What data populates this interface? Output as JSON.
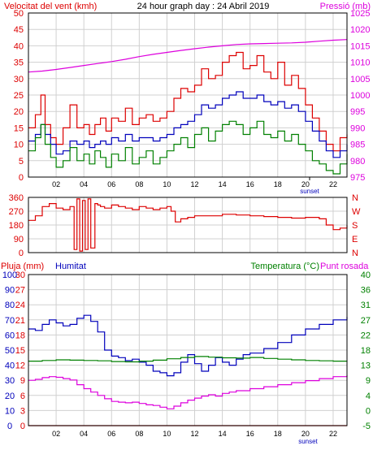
{
  "colors": {
    "red": "#dd0000",
    "blue": "#0000bb",
    "green": "#008000",
    "magenta": "#dd00dd",
    "grid": "#d0d0d0",
    "frame": "#000000"
  },
  "chart_data": [
    {
      "id": "wind-pressure",
      "type": "line",
      "title": "24 hour graph day : 24 Abril 2019",
      "left_label": "Velocitat del vent (kmh)",
      "right_label": "Pressió (mb)",
      "x_ticks": [
        "02",
        "04",
        "06",
        "08",
        "10",
        "12",
        "14",
        "16",
        "18",
        "20",
        "22"
      ],
      "sunset_label": "sunset",
      "y_left": {
        "range": [
          0,
          50
        ],
        "ticks": [
          0,
          5,
          10,
          15,
          20,
          25,
          30,
          35,
          40,
          45,
          50
        ]
      },
      "y_right": {
        "range": [
          975,
          1025
        ],
        "ticks": [
          975,
          980,
          985,
          990,
          995,
          1000,
          1005,
          1010,
          1015,
          1020,
          1025
        ]
      },
      "series": [
        {
          "color": "red",
          "axis": "left",
          "x": [
            0.0,
            0.5,
            0.9,
            1.2,
            1.6,
            2.0,
            2.5,
            3.0,
            3.5,
            4.0,
            4.4,
            4.8,
            5.2,
            5.6,
            6.0,
            6.5,
            7.0,
            7.5,
            8.0,
            8.5,
            9.0,
            9.5,
            10.0,
            10.5,
            11.0,
            11.5,
            12.0,
            12.5,
            13.0,
            13.5,
            14.0,
            14.5,
            15.0,
            15.5,
            16.0,
            16.5,
            17.0,
            17.5,
            18.0,
            18.5,
            19.0,
            19.5,
            20.0,
            20.5,
            21.0,
            21.5,
            22.0,
            22.5,
            23.0
          ],
          "values": [
            15,
            19,
            25,
            16,
            12,
            10,
            15,
            22,
            15,
            16,
            13,
            16,
            18,
            14,
            18,
            17,
            21,
            16,
            18,
            19,
            17,
            18,
            20,
            24,
            27,
            26,
            28,
            33,
            30,
            31,
            35,
            37,
            38,
            33,
            34,
            37,
            32,
            30,
            35,
            28,
            31,
            27,
            22,
            18,
            14,
            10,
            8,
            12,
            13
          ]
        },
        {
          "color": "blue",
          "axis": "left",
          "x": [
            0.0,
            0.5,
            0.9,
            1.2,
            1.6,
            2.0,
            2.5,
            3.0,
            3.5,
            4.0,
            4.4,
            4.8,
            5.2,
            5.6,
            6.0,
            6.5,
            7.0,
            7.5,
            8.0,
            8.5,
            9.0,
            9.5,
            10.0,
            10.5,
            11.0,
            11.5,
            12.0,
            12.5,
            13.0,
            13.5,
            14.0,
            14.5,
            15.0,
            15.5,
            16.0,
            16.5,
            17.0,
            17.5,
            18.0,
            18.5,
            19.0,
            19.5,
            20.0,
            20.5,
            21.0,
            21.5,
            22.0,
            22.5,
            23.0
          ],
          "values": [
            11,
            13,
            16,
            13,
            10,
            7,
            8,
            11,
            10,
            11,
            9,
            10,
            11,
            10,
            12,
            11,
            13,
            11,
            12,
            12,
            11,
            12,
            13,
            15,
            16,
            17,
            19,
            22,
            21,
            22,
            24,
            25,
            26,
            24,
            24,
            25,
            23,
            22,
            23,
            21,
            22,
            20,
            17,
            14,
            11,
            8,
            6,
            8,
            10
          ]
        },
        {
          "color": "green",
          "axis": "left",
          "x": [
            0.0,
            0.5,
            0.9,
            1.2,
            1.6,
            2.0,
            2.5,
            3.0,
            3.5,
            4.0,
            4.4,
            4.8,
            5.2,
            5.6,
            6.0,
            6.5,
            7.0,
            7.5,
            8.0,
            8.5,
            9.0,
            9.5,
            10.0,
            10.5,
            11.0,
            11.5,
            12.0,
            12.5,
            13.0,
            13.5,
            14.0,
            14.5,
            15.0,
            15.5,
            16.0,
            16.5,
            17.0,
            17.5,
            18.0,
            18.5,
            19.0,
            19.5,
            20.0,
            20.5,
            21.0,
            21.5,
            22.0,
            22.5,
            23.0
          ],
          "values": [
            8,
            12,
            16,
            10,
            6,
            3,
            5,
            9,
            5,
            7,
            4,
            8,
            6,
            3,
            7,
            5,
            9,
            4,
            6,
            8,
            4,
            6,
            8,
            10,
            12,
            9,
            13,
            15,
            11,
            14,
            16,
            17,
            16,
            13,
            15,
            17,
            13,
            12,
            14,
            11,
            13,
            10,
            8,
            5,
            4,
            2,
            1,
            4,
            7
          ]
        },
        {
          "color": "magenta",
          "axis": "right",
          "x": [
            0,
            1,
            2,
            3,
            4,
            5,
            6,
            7,
            8,
            9,
            10,
            11,
            12,
            13,
            14,
            15,
            16,
            17,
            18,
            19,
            20,
            21,
            22,
            23
          ],
          "values": [
            1007.0,
            1007.3,
            1007.8,
            1008.4,
            1009.0,
            1009.6,
            1010.2,
            1010.9,
            1011.7,
            1012.4,
            1013.0,
            1013.6,
            1014.1,
            1014.6,
            1015.0,
            1015.4,
            1015.6,
            1015.7,
            1015.8,
            1015.9,
            1016.1,
            1016.4,
            1016.7,
            1016.9
          ]
        }
      ]
    },
    {
      "id": "wind-direction",
      "type": "line",
      "y_ticks": [
        0,
        90,
        180,
        270,
        360
      ],
      "y_range": [
        0,
        360
      ],
      "direction_labels": [
        "N",
        "W",
        "S",
        "E",
        "N"
      ],
      "x_ticks": [
        "02",
        "04",
        "06",
        "08",
        "10",
        "12",
        "14",
        "16",
        "18",
        "20",
        "22"
      ],
      "series": [
        {
          "color": "red",
          "x": [
            0.0,
            0.5,
            1.0,
            1.5,
            2.0,
            2.5,
            3.0,
            3.3,
            3.5,
            3.7,
            3.9,
            4.1,
            4.3,
            4.5,
            4.8,
            5.0,
            5.2,
            5.5,
            6.0,
            6.5,
            7.0,
            7.5,
            8.0,
            8.5,
            9.0,
            9.5,
            10.0,
            10.3,
            10.6,
            11.0,
            11.5,
            12.0,
            13.0,
            14.0,
            15.0,
            16.0,
            17.0,
            18.0,
            19.0,
            20.0,
            21.0,
            21.5,
            22.0,
            22.5,
            23.0
          ],
          "values": [
            210,
            240,
            300,
            320,
            290,
            280,
            300,
            20,
            350,
            10,
            340,
            20,
            350,
            30,
            320,
            310,
            300,
            290,
            310,
            300,
            290,
            280,
            300,
            290,
            280,
            290,
            300,
            270,
            200,
            220,
            230,
            240,
            240,
            250,
            245,
            240,
            235,
            230,
            225,
            230,
            220,
            180,
            150,
            160,
            180
          ]
        }
      ]
    },
    {
      "id": "rain-humidity-temp",
      "type": "line",
      "left_label": "Pluja (mm)",
      "humidity_label": "Humitat",
      "right_label": "Temperatura (°C)",
      "dewpoint_label": "Punt rosada",
      "y_rain": {
        "range": [
          0,
          30
        ],
        "ticks": [
          0,
          3,
          6,
          9,
          12,
          15,
          18,
          21,
          24,
          27,
          30
        ]
      },
      "y_humidity": {
        "range": [
          0,
          100
        ],
        "ticks": [
          0,
          10,
          20,
          30,
          40,
          50,
          60,
          70,
          80,
          90,
          100
        ]
      },
      "y_temp": {
        "range": [
          -5,
          40
        ],
        "ticks": [
          -5,
          0,
          4,
          9,
          13,
          18,
          22,
          27,
          31,
          36,
          40
        ]
      },
      "x_ticks": [
        "02",
        "04",
        "06",
        "08",
        "10",
        "12",
        "14",
        "16",
        "18",
        "20",
        "22"
      ],
      "sunset_label": "sunset",
      "series": [
        {
          "color": "blue",
          "axis": "humidity",
          "x": [
            0.0,
            0.5,
            1.0,
            1.5,
            2.0,
            2.5,
            3.0,
            3.5,
            4.0,
            4.5,
            5.0,
            5.5,
            6.0,
            6.5,
            7.0,
            7.5,
            8.0,
            8.5,
            9.0,
            9.5,
            10.0,
            10.5,
            11.0,
            11.5,
            12.0,
            12.5,
            13.0,
            13.5,
            14.0,
            14.5,
            15.0,
            15.5,
            16.0,
            17.0,
            18.0,
            19.0,
            20.0,
            21.0,
            22.0,
            23.0
          ],
          "values": [
            64,
            63,
            67,
            70,
            68,
            66,
            67,
            71,
            73,
            69,
            62,
            50,
            46,
            45,
            43,
            44,
            42,
            40,
            36,
            35,
            33,
            35,
            42,
            47,
            41,
            36,
            40,
            45,
            42,
            40,
            44,
            47,
            48,
            51,
            55,
            60,
            64,
            67,
            70,
            72
          ]
        },
        {
          "color": "green",
          "axis": "temp",
          "x": [
            0,
            1,
            2,
            3,
            4,
            5,
            6,
            7,
            8,
            9,
            10,
            11,
            12,
            13,
            14,
            15,
            16,
            17,
            18,
            19,
            20,
            21,
            22,
            23
          ],
          "values": [
            14.2,
            14.4,
            14.6,
            14.5,
            14.4,
            14.3,
            14.1,
            14.0,
            14.2,
            14.5,
            14.9,
            15.3,
            15.6,
            15.4,
            15.2,
            15.1,
            15.3,
            15.0,
            14.8,
            14.6,
            14.4,
            14.3,
            14.2,
            14.3
          ]
        },
        {
          "color": "magenta",
          "axis": "temp",
          "x": [
            0.0,
            0.5,
            1.0,
            1.5,
            2.0,
            2.5,
            3.0,
            3.5,
            4.0,
            4.5,
            5.0,
            5.5,
            6.0,
            6.5,
            7.0,
            7.5,
            8.0,
            8.5,
            9.0,
            9.5,
            10.0,
            10.5,
            11.0,
            11.5,
            12.0,
            12.5,
            13.0,
            13.5,
            14.0,
            14.5,
            15.0,
            16.0,
            17.0,
            18.0,
            19.0,
            20.0,
            21.0,
            22.0,
            23.0
          ],
          "values": [
            8.5,
            8.8,
            9.3,
            9.6,
            9.4,
            9.0,
            8.6,
            7.2,
            6.0,
            5.0,
            4.0,
            3.0,
            2.2,
            2.0,
            1.8,
            2.0,
            1.6,
            1.2,
            1.0,
            0.5,
            0.0,
            0.8,
            1.8,
            2.6,
            3.2,
            3.8,
            4.2,
            3.8,
            4.6,
            5.0,
            5.4,
            6.0,
            6.6,
            7.2,
            7.8,
            8.4,
            9.0,
            9.6,
            10.0
          ]
        },
        {
          "color": "red",
          "axis": "rain",
          "x": [
            0,
            23
          ],
          "values": [
            0,
            0
          ]
        }
      ]
    }
  ]
}
